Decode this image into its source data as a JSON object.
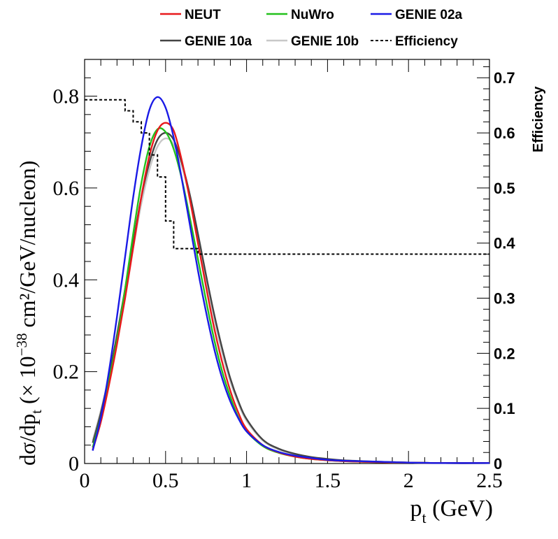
{
  "chart_data": {
    "type": "line",
    "xlabel_main": "p",
    "xlabel_sub": "t",
    "xlabel_unit": " (GeV)",
    "ylabel_pre": "dσ/dp",
    "ylabel_sub": "t",
    "ylabel_mid": " (× 10",
    "ylabel_exp": "−38",
    "ylabel_post": " cm²/GeV/nucleon)",
    "y2label": "Efficiency",
    "xlim": [
      0,
      2.5
    ],
    "ylim": [
      0,
      0.88
    ],
    "y2lim": [
      0,
      0.7333
    ],
    "x_ticks": [
      0,
      0.5,
      1,
      1.5,
      2,
      2.5
    ],
    "x_tick_labels": [
      "0",
      "0.5",
      "1",
      "1.5",
      "2",
      "2.5"
    ],
    "y_ticks": [
      0,
      0.2,
      0.4,
      0.6,
      0.8
    ],
    "y_tick_labels": [
      "0",
      "0.2",
      "0.4",
      "0.6",
      "0.8"
    ],
    "y2_ticks": [
      0,
      0.1,
      0.2,
      0.3,
      0.4,
      0.5,
      0.6,
      0.7
    ],
    "y2_tick_labels": [
      "0",
      "0.1",
      "0.2",
      "0.3",
      "0.4",
      "0.5",
      "0.6",
      "0.7"
    ],
    "legend_position": "top",
    "series": [
      {
        "name": "NEUT",
        "color": "#e8191b",
        "axis": "left",
        "x": [
          0.05,
          0.1,
          0.15,
          0.2,
          0.25,
          0.3,
          0.35,
          0.4,
          0.45,
          0.5,
          0.55,
          0.6,
          0.65,
          0.7,
          0.75,
          0.8,
          0.85,
          0.9,
          0.95,
          1.0,
          1.1,
          1.2,
          1.3,
          1.4,
          1.5,
          1.6,
          1.8,
          2.0,
          2.2,
          2.5
        ],
        "y": [
          0.03,
          0.09,
          0.17,
          0.26,
          0.36,
          0.47,
          0.58,
          0.67,
          0.725,
          0.742,
          0.725,
          0.66,
          0.575,
          0.48,
          0.385,
          0.295,
          0.22,
          0.158,
          0.11,
          0.075,
          0.04,
          0.024,
          0.015,
          0.01,
          0.007,
          0.005,
          0.003,
          0.002,
          0.001,
          0.001
        ]
      },
      {
        "name": "NuWro",
        "color": "#22c11c",
        "axis": "left",
        "x": [
          0.05,
          0.1,
          0.15,
          0.2,
          0.25,
          0.3,
          0.35,
          0.4,
          0.45,
          0.5,
          0.55,
          0.6,
          0.65,
          0.7,
          0.75,
          0.8,
          0.85,
          0.9,
          0.95,
          1.0,
          1.1,
          1.2,
          1.3,
          1.4,
          1.5,
          1.6,
          1.8,
          2.0,
          2.2,
          2.5
        ],
        "y": [
          0.035,
          0.1,
          0.18,
          0.27,
          0.38,
          0.5,
          0.61,
          0.69,
          0.728,
          0.722,
          0.685,
          0.62,
          0.535,
          0.445,
          0.355,
          0.27,
          0.2,
          0.145,
          0.1,
          0.07,
          0.038,
          0.023,
          0.015,
          0.01,
          0.007,
          0.005,
          0.003,
          0.002,
          0.001,
          0.001
        ]
      },
      {
        "name": "GENIE 02a",
        "color": "#1a1ae6",
        "axis": "left",
        "x": [
          0.05,
          0.1,
          0.15,
          0.2,
          0.25,
          0.3,
          0.35,
          0.4,
          0.45,
          0.5,
          0.55,
          0.6,
          0.65,
          0.7,
          0.75,
          0.8,
          0.85,
          0.9,
          0.95,
          1.0,
          1.1,
          1.2,
          1.3,
          1.4,
          1.5,
          1.6,
          1.8,
          2.0,
          2.2,
          2.5
        ],
        "y": [
          0.028,
          0.1,
          0.2,
          0.32,
          0.45,
          0.58,
          0.69,
          0.77,
          0.798,
          0.775,
          0.71,
          0.62,
          0.52,
          0.42,
          0.33,
          0.25,
          0.185,
          0.135,
          0.098,
          0.07,
          0.04,
          0.025,
          0.017,
          0.012,
          0.008,
          0.006,
          0.004,
          0.002,
          0.001,
          0.001
        ]
      },
      {
        "name": "GENIE 10a",
        "color": "#444444",
        "axis": "left",
        "x": [
          0.05,
          0.1,
          0.15,
          0.2,
          0.25,
          0.3,
          0.35,
          0.4,
          0.45,
          0.5,
          0.55,
          0.6,
          0.65,
          0.7,
          0.75,
          0.8,
          0.85,
          0.9,
          0.95,
          1.0,
          1.1,
          1.2,
          1.3,
          1.4,
          1.5,
          1.6,
          1.8,
          2.0,
          2.2,
          2.5
        ],
        "y": [
          0.045,
          0.11,
          0.19,
          0.28,
          0.38,
          0.48,
          0.58,
          0.655,
          0.705,
          0.72,
          0.705,
          0.655,
          0.585,
          0.5,
          0.41,
          0.325,
          0.25,
          0.185,
          0.135,
          0.097,
          0.052,
          0.032,
          0.021,
          0.014,
          0.01,
          0.007,
          0.004,
          0.002,
          0.001,
          0.001
        ]
      },
      {
        "name": "GENIE 10b",
        "color": "#c8c8c8",
        "axis": "left",
        "x": [
          0.05,
          0.1,
          0.15,
          0.2,
          0.25,
          0.3,
          0.35,
          0.4,
          0.45,
          0.5,
          0.55,
          0.6,
          0.65,
          0.7,
          0.75,
          0.8,
          0.85,
          0.9,
          0.95,
          1.0,
          1.1,
          1.2,
          1.3,
          1.4,
          1.5,
          1.6,
          1.8,
          2.0,
          2.2,
          2.5
        ],
        "y": [
          0.05,
          0.115,
          0.19,
          0.275,
          0.37,
          0.47,
          0.565,
          0.64,
          0.69,
          0.708,
          0.695,
          0.648,
          0.578,
          0.492,
          0.4,
          0.315,
          0.24,
          0.178,
          0.13,
          0.093,
          0.05,
          0.03,
          0.02,
          0.013,
          0.009,
          0.006,
          0.003,
          0.002,
          0.001,
          0.001
        ]
      },
      {
        "name": "Efficiency",
        "color": "#000000",
        "axis": "right",
        "style": "dashed-step",
        "x": [
          0,
          0.25,
          0.25,
          0.3,
          0.3,
          0.35,
          0.35,
          0.4,
          0.4,
          0.45,
          0.45,
          0.5,
          0.5,
          0.55,
          0.55,
          0.7,
          0.7,
          0.85,
          0.85,
          2.5
        ],
        "y": [
          0.66,
          0.66,
          0.64,
          0.64,
          0.62,
          0.62,
          0.6,
          0.6,
          0.56,
          0.56,
          0.52,
          0.52,
          0.44,
          0.44,
          0.39,
          0.39,
          0.38,
          0.38,
          0.38,
          0.38
        ]
      }
    ]
  }
}
